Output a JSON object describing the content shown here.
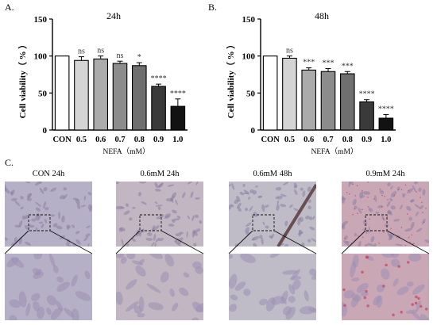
{
  "panels": {
    "a": "A.",
    "b": "B.",
    "c": "C."
  },
  "chart_data": [
    {
      "type": "bar",
      "title": "24h",
      "ylabel": "Cell viability（ % ）",
      "xlabel": "NEFA（mM）",
      "categories": [
        "CON",
        "0.5",
        "0.6",
        "0.7",
        "0.8",
        "0.9",
        "1.0"
      ],
      "values": [
        100,
        94,
        96,
        90,
        87,
        59,
        32
      ],
      "errors": [
        0,
        5,
        4,
        3,
        4,
        3,
        10
      ],
      "significance": [
        "",
        "ns",
        "ns",
        "ns",
        "*",
        "****",
        "****"
      ],
      "bar_colors": [
        "#ffffff",
        "#d4d4d4",
        "#ababab",
        "#8c8c8c",
        "#6f6f6f",
        "#3a3a3a",
        "#121212"
      ],
      "ylim": [
        0,
        150
      ],
      "yticks": [
        0,
        50,
        100,
        150
      ]
    },
    {
      "type": "bar",
      "title": "48h",
      "ylabel": "Cell viability（ % ）",
      "xlabel": "NEFA（mM）",
      "categories": [
        "CON",
        "0.5",
        "0.6",
        "0.7",
        "0.8",
        "0.9",
        "1.0"
      ],
      "values": [
        100,
        97,
        81,
        79,
        76,
        38,
        16
      ],
      "errors": [
        0,
        3,
        3,
        4,
        3,
        3,
        5
      ],
      "significance": [
        "",
        "ns",
        "***",
        "***",
        "***",
        "****",
        "****"
      ],
      "bar_colors": [
        "#ffffff",
        "#d4d4d4",
        "#ababab",
        "#8c8c8c",
        "#6f6f6f",
        "#3a3a3a",
        "#121212"
      ],
      "ylim": [
        0,
        150
      ],
      "yticks": [
        0,
        50,
        100,
        150
      ]
    }
  ],
  "micrographs": [
    {
      "label": "CON 24h",
      "tone": "#b6b0c6"
    },
    {
      "label": "0.6mM 24h",
      "tone": "#c2b6c2"
    },
    {
      "label": "0.6mM 48h",
      "tone": "#bfbcc8"
    },
    {
      "label": "0.9mM 24h",
      "tone": "#c9a7b5"
    }
  ]
}
